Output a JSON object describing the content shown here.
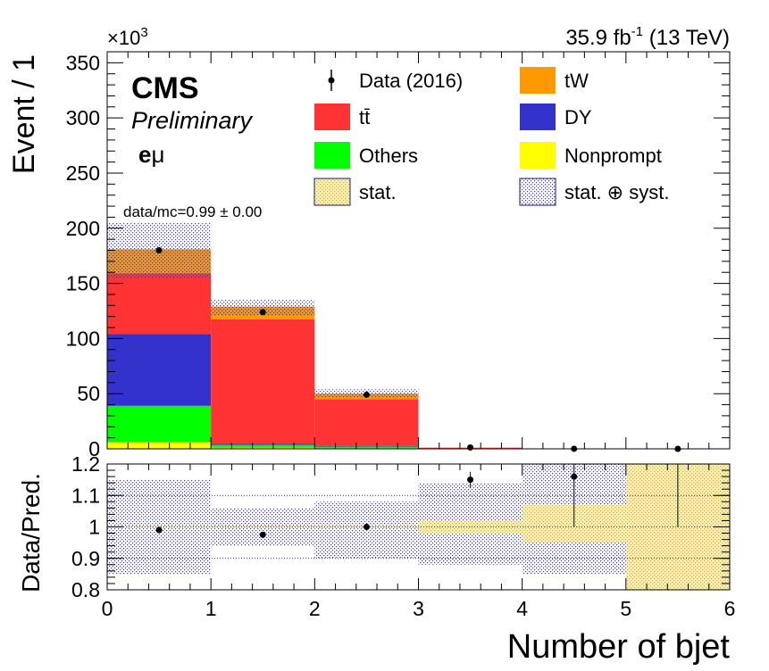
{
  "chart_data": [
    {
      "type": "bar",
      "stacked": true,
      "title_right": "35.9 fb",
      "title_right_sup": "-1",
      "title_right_tail": " (13 TeV)",
      "ylabel": "Event / 1",
      "yscale_label": "×10",
      "yscale_sup": "3",
      "y_scale_factor": 1000,
      "ylim": [
        0,
        360000
      ],
      "xlim": [
        0,
        6
      ],
      "bin_edges": [
        0,
        1,
        2,
        3,
        4,
        5,
        6
      ],
      "y_ticks": [
        0,
        50000,
        100000,
        150000,
        200000,
        250000,
        300000,
        350000
      ],
      "y_tick_labels": [
        "0",
        "50",
        "100",
        "150",
        "200",
        "250",
        "300",
        "350"
      ],
      "series": [
        {
          "name": "Nonprompt",
          "color": "#ffff00",
          "values": [
            6000,
            1000,
            500,
            50,
            0,
            0
          ]
        },
        {
          "name": "Others",
          "color": "#00ff00",
          "values": [
            33000,
            2500,
            1500,
            100,
            0,
            0
          ]
        },
        {
          "name": "DY",
          "color": "#3333cc",
          "values": [
            65000,
            1000,
            500,
            50,
            0,
            0
          ]
        },
        {
          "name": "tt̄",
          "color": "#ff3333",
          "values": [
            55000,
            113000,
            42500,
            800,
            20,
            5
          ]
        },
        {
          "name": "tW",
          "color": "#ff9900",
          "values": [
            22000,
            11500,
            5000,
            150,
            10,
            2
          ]
        }
      ],
      "data": {
        "name": "Data (2016)",
        "x": [
          0.5,
          1.5,
          2.5,
          3.5,
          4.5,
          5.5
        ],
        "y": [
          180000,
          124000,
          49000,
          1200,
          35,
          8
        ]
      },
      "uncertainty_band": {
        "upper": [
          205000,
          135000,
          54000,
          1350,
          40,
          8
        ],
        "lower": [
          155000,
          121000,
          46000,
          1050,
          28,
          6
        ]
      },
      "cms_label": "CMS",
      "preliminary_label": "Preliminary",
      "channel_e": "e",
      "channel_mu": "μ",
      "annotation": "data/mc=0.99 ± 0.00",
      "legend": [
        {
          "label": "Data (2016)",
          "type": "data"
        },
        {
          "label": "tW",
          "type": "fill",
          "color": "#ff9900"
        },
        {
          "label": "tt̄",
          "type": "fill",
          "color": "#ff3333"
        },
        {
          "label": "DY",
          "type": "fill",
          "color": "#3333cc"
        },
        {
          "label": "Others",
          "type": "fill",
          "color": "#00ff00"
        },
        {
          "label": "Nonprompt",
          "type": "fill",
          "color": "#ffff00"
        },
        {
          "label": "stat.",
          "type": "stat"
        },
        {
          "label": "stat. ⊕ syst.",
          "type": "syst"
        }
      ]
    },
    {
      "type": "scatter",
      "ylabel": "Data/Pred.",
      "xlabel": "Number of bjet",
      "xlim": [
        0,
        6
      ],
      "ylim": [
        0.8,
        1.2
      ],
      "x_ticks": [
        0,
        1,
        2,
        3,
        4,
        5,
        6
      ],
      "x_tick_labels": [
        "0",
        "1",
        "2",
        "3",
        "4",
        "5",
        "6"
      ],
      "y_ticks": [
        0.8,
        0.9,
        1.0,
        1.1,
        1.2
      ],
      "y_tick_labels": [
        "0.8",
        "0.9",
        "1",
        "1.1",
        "1.2"
      ],
      "gridlines": [
        0.9,
        1.0,
        1.1
      ],
      "ratio": {
        "x": [
          0.5,
          1.5,
          2.5,
          3.5,
          4.5,
          5.5
        ],
        "y": [
          0.99,
          0.975,
          1.0,
          1.15,
          1.16,
          1.2
        ],
        "err_up": [
          0.003,
          0.003,
          0.005,
          0.025,
          0.12,
          0.2
        ],
        "err_down": [
          0.003,
          0.003,
          0.005,
          0.025,
          0.16,
          0.2
        ]
      },
      "syst_band": {
        "upper": [
          1.15,
          1.06,
          1.08,
          1.14,
          1.2,
          1.2
        ],
        "lower": [
          0.85,
          0.94,
          0.9,
          0.88,
          0.85,
          0.8
        ]
      },
      "stat_band": {
        "upper": [
          1.002,
          1.003,
          1.005,
          1.02,
          1.07,
          1.2
        ],
        "lower": [
          0.998,
          0.997,
          0.995,
          0.98,
          0.95,
          0.8
        ]
      }
    }
  ]
}
